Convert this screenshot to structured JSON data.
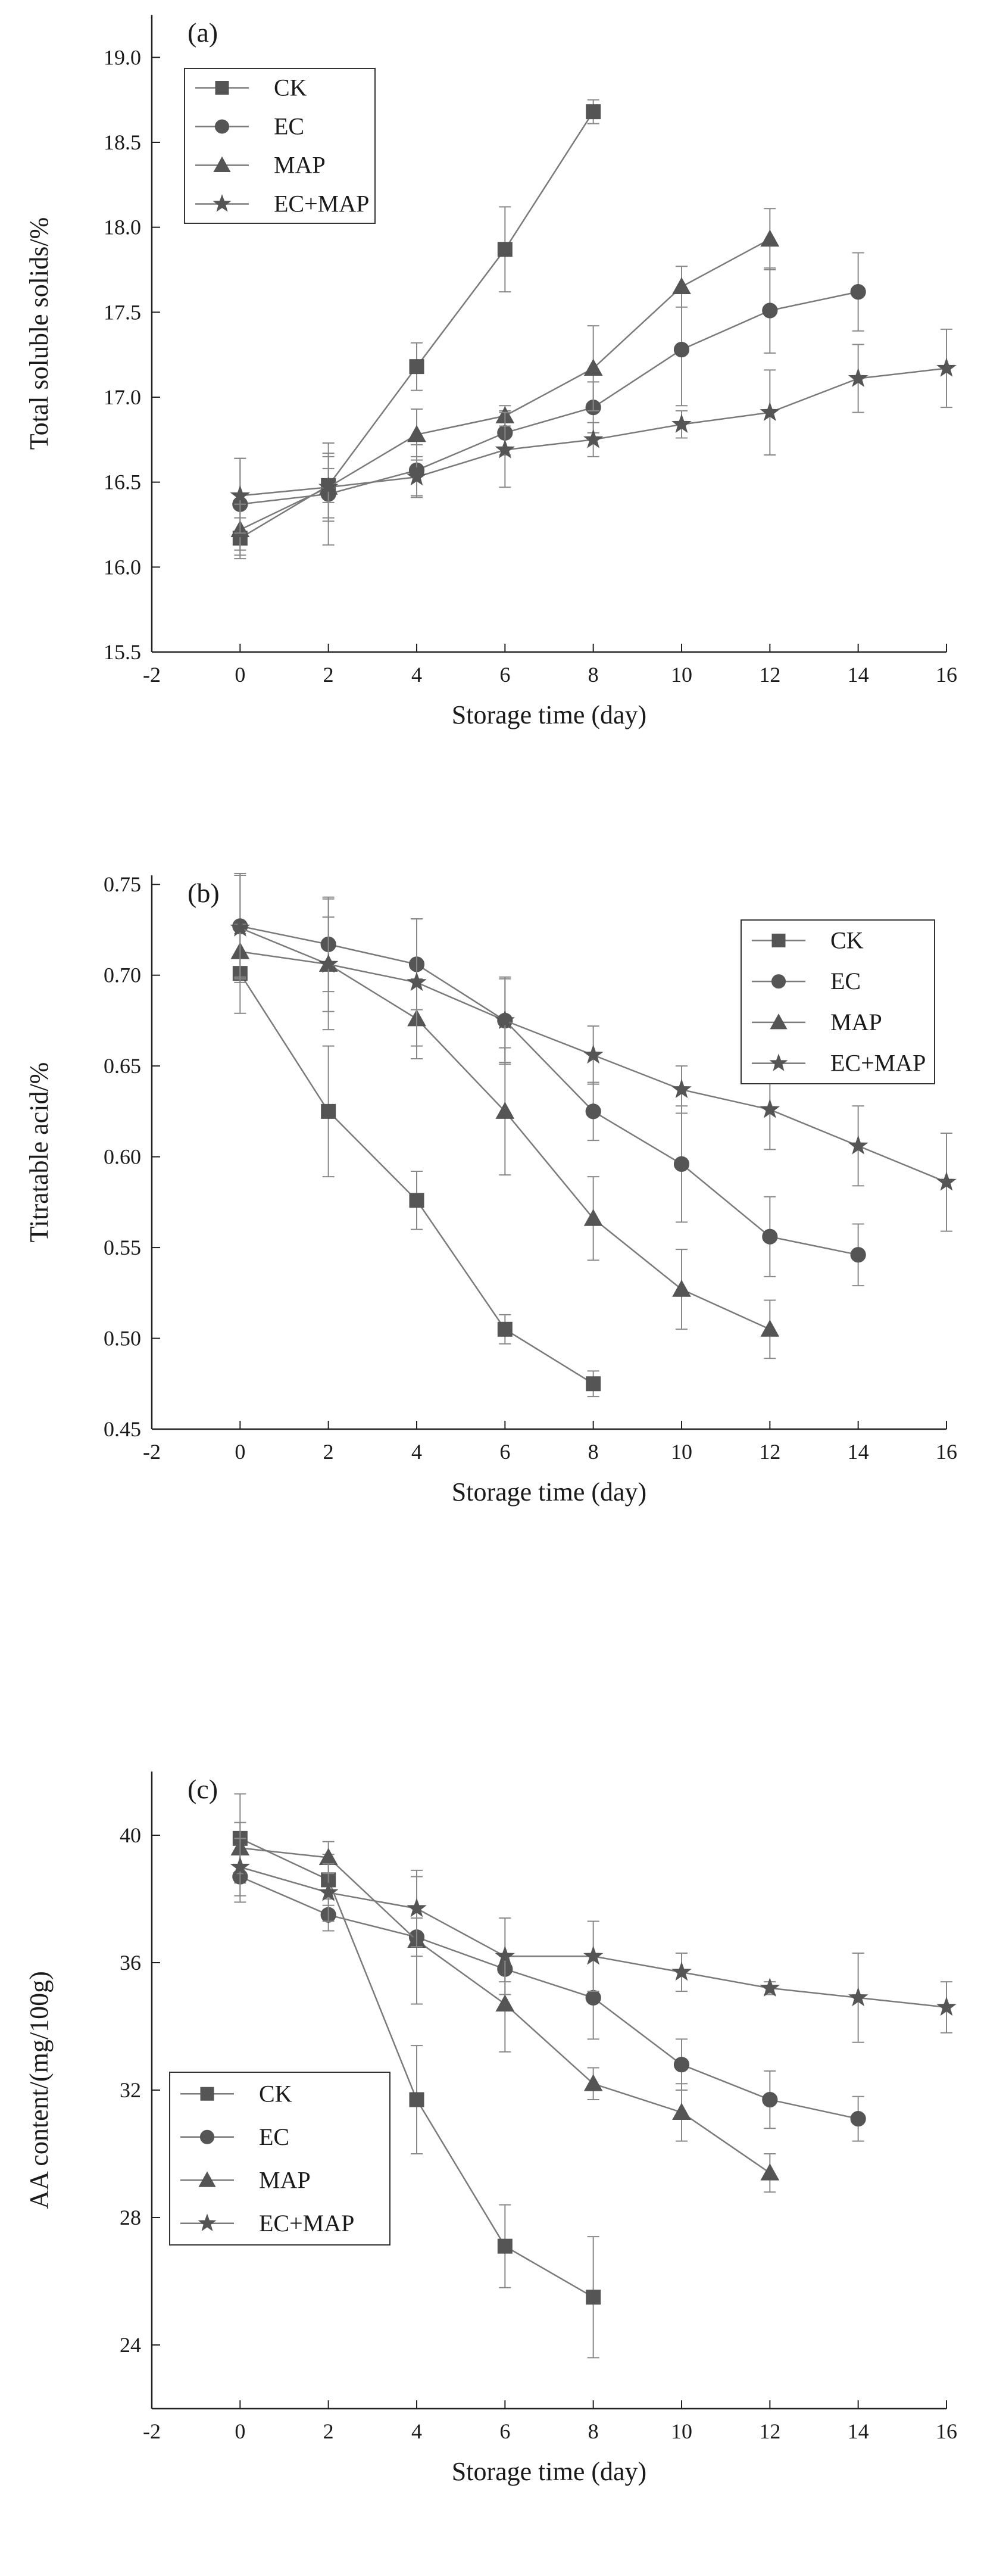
{
  "chart_data": [
    {
      "type": "line",
      "panel_label": "(a)",
      "xlabel": "Storage time (day)",
      "ylabel": "Total soluble solids/%",
      "xlim": [
        -2,
        16
      ],
      "ylim": [
        15.5,
        19.25
      ],
      "xticks": [
        -2,
        0,
        2,
        4,
        6,
        8,
        10,
        12,
        14,
        16
      ],
      "xtick_labels": [
        "-2",
        "0",
        "2",
        "4",
        "6",
        "8",
        "10",
        "12",
        "14",
        "16"
      ],
      "yticks": [
        15.5,
        16.0,
        16.5,
        17.0,
        17.5,
        18.0,
        18.5,
        19.0
      ],
      "ytick_labels": [
        "15.5",
        "16.0",
        "16.5",
        "17.0",
        "17.5",
        "18.0",
        "18.5",
        "19.0"
      ],
      "legend_position": "top-left",
      "series": [
        {
          "name": "CK",
          "marker": "square",
          "x": [
            0,
            2,
            4,
            6,
            8
          ],
          "values": [
            16.17,
            16.48,
            17.18,
            17.87,
            18.68
          ],
          "errors": [
            0.12,
            0.1,
            0.14,
            0.25,
            0.07
          ]
        },
        {
          "name": "EC",
          "marker": "circle",
          "x": [
            0,
            2,
            4,
            6,
            8,
            10,
            12,
            14
          ],
          "values": [
            16.37,
            16.43,
            16.57,
            16.79,
            16.94,
            17.28,
            17.51,
            17.62
          ],
          "errors": [
            0.27,
            0.3,
            0.15,
            0.13,
            0.15,
            0.33,
            0.25,
            0.23
          ]
        },
        {
          "name": "MAP",
          "marker": "triangle",
          "x": [
            0,
            2,
            4,
            6,
            8,
            10,
            12
          ],
          "values": [
            16.22,
            16.47,
            16.78,
            16.89,
            17.17,
            17.65,
            17.93
          ],
          "errors": [
            0.15,
            0.2,
            0.15,
            0.06,
            0.25,
            0.12,
            0.18
          ]
        },
        {
          "name": "EC+MAP",
          "marker": "star",
          "x": [
            0,
            2,
            4,
            6,
            8,
            10,
            12,
            14,
            16
          ],
          "values": [
            16.42,
            16.47,
            16.53,
            16.69,
            16.75,
            16.84,
            16.91,
            17.11,
            17.17
          ],
          "errors": [
            0.22,
            0.18,
            0.12,
            0.22,
            0.1,
            0.08,
            0.25,
            0.2,
            0.23
          ]
        }
      ]
    },
    {
      "type": "line",
      "panel_label": "(b)",
      "xlabel": "Storage time (day)",
      "ylabel": "Titratable acid/%",
      "xlim": [
        -2,
        16
      ],
      "ylim": [
        0.45,
        0.755
      ],
      "xticks": [
        -2,
        0,
        2,
        4,
        6,
        8,
        10,
        12,
        14,
        16
      ],
      "xtick_labels": [
        "-2",
        "0",
        "2",
        "4",
        "6",
        "8",
        "10",
        "12",
        "14",
        "16"
      ],
      "yticks": [
        0.45,
        0.5,
        0.55,
        0.6,
        0.65,
        0.7,
        0.75
      ],
      "ytick_labels": [
        "0.45",
        "0.50",
        "0.55",
        "0.60",
        "0.65",
        "0.70",
        "0.75"
      ],
      "legend_position": "top-right",
      "series": [
        {
          "name": "CK",
          "marker": "square",
          "x": [
            0,
            2,
            4,
            6,
            8
          ],
          "values": [
            0.701,
            0.625,
            0.576,
            0.505,
            0.475
          ],
          "errors": [
            0.022,
            0.036,
            0.016,
            0.008,
            0.007
          ]
        },
        {
          "name": "EC",
          "marker": "circle",
          "x": [
            0,
            2,
            4,
            6,
            8,
            10,
            12,
            14
          ],
          "values": [
            0.727,
            0.717,
            0.706,
            0.675,
            0.625,
            0.596,
            0.556,
            0.546
          ],
          "errors": [
            0.028,
            0.026,
            0.025,
            0.024,
            0.016,
            0.032,
            0.022,
            0.017
          ]
        },
        {
          "name": "MAP",
          "marker": "triangle",
          "x": [
            0,
            2,
            4,
            6,
            8,
            10,
            12
          ],
          "values": [
            0.713,
            0.706,
            0.676,
            0.625,
            0.566,
            0.527,
            0.505
          ],
          "errors": [
            0.015,
            0.036,
            0.022,
            0.035,
            0.023,
            0.022,
            0.016
          ]
        },
        {
          "name": "EC+MAP",
          "marker": "star",
          "x": [
            0,
            2,
            4,
            6,
            8,
            10,
            12,
            14,
            16
          ],
          "values": [
            0.726,
            0.706,
            0.696,
            0.675,
            0.656,
            0.637,
            0.626,
            0.606,
            0.586
          ],
          "errors": [
            0.03,
            0.026,
            0.035,
            0.023,
            0.016,
            0.013,
            0.022,
            0.022,
            0.027
          ]
        }
      ]
    },
    {
      "type": "line",
      "panel_label": "(c)",
      "xlabel": "Storage time (day)",
      "ylabel": "AA content/(mg/100g)",
      "xlim": [
        -2,
        16
      ],
      "ylim": [
        22,
        42
      ],
      "xticks": [
        -2,
        0,
        2,
        4,
        6,
        8,
        10,
        12,
        14,
        16
      ],
      "xtick_labels": [
        "-2",
        "0",
        "2",
        "4",
        "6",
        "8",
        "10",
        "12",
        "14",
        "16"
      ],
      "yticks": [
        24,
        28,
        32,
        36,
        40
      ],
      "ytick_labels": [
        "24",
        "28",
        "32",
        "36",
        "40"
      ],
      "legend_position": "bottom-left",
      "series": [
        {
          "name": "CK",
          "marker": "square",
          "x": [
            0,
            2,
            4,
            6,
            8
          ],
          "values": [
            39.9,
            38.6,
            31.7,
            27.1,
            25.5
          ],
          "errors": [
            1.4,
            0.8,
            1.7,
            1.3,
            1.9
          ]
        },
        {
          "name": "EC",
          "marker": "circle",
          "x": [
            0,
            2,
            4,
            6,
            8,
            10,
            12,
            14
          ],
          "values": [
            38.7,
            37.5,
            36.8,
            35.8,
            34.9,
            32.8,
            31.7,
            31.1
          ],
          "errors": [
            0.8,
            0.5,
            0.6,
            0.4,
            1.3,
            0.8,
            0.9,
            0.7
          ]
        },
        {
          "name": "MAP",
          "marker": "triangle",
          "x": [
            0,
            2,
            4,
            6,
            8,
            10,
            12
          ],
          "values": [
            39.6,
            39.3,
            36.7,
            34.7,
            32.2,
            31.3,
            29.4
          ],
          "errors": [
            0.8,
            0.5,
            2.0,
            1.5,
            0.5,
            0.9,
            0.6
          ]
        },
        {
          "name": "EC+MAP",
          "marker": "star",
          "x": [
            0,
            2,
            4,
            6,
            8,
            10,
            12,
            14,
            16
          ],
          "values": [
            39.0,
            38.2,
            37.7,
            36.2,
            36.2,
            35.7,
            35.2,
            34.9,
            34.6
          ],
          "errors": [
            0.9,
            0.9,
            1.2,
            1.2,
            1.1,
            0.6,
            0.2,
            1.4,
            0.8
          ]
        }
      ]
    }
  ]
}
